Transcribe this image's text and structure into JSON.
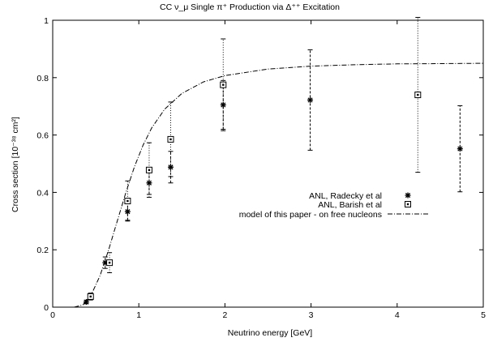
{
  "chart_data": {
    "type": "scatter",
    "title": "CC ν_μ Single π⁺ Production via Δ⁺⁺ Excitation",
    "xlabel": "Neutrino energy [GeV]",
    "ylabel": "Cross section [10⁻³⁸ cm²]",
    "xlim": [
      0,
      5
    ],
    "ylim": [
      0,
      1
    ],
    "xticks": [
      0,
      1,
      2,
      3,
      4,
      5
    ],
    "yticks": [
      0,
      0.2,
      0.4,
      0.6,
      0.8,
      1
    ],
    "xtick_labels": [
      "0",
      "1",
      "2",
      "3",
      "4",
      "5"
    ],
    "ytick_labels": [
      "0",
      "0.2",
      "0.4",
      "0.6",
      "0.8",
      "1"
    ],
    "grid": false,
    "legend_position": "right, middle",
    "series": [
      {
        "name": "ANL, Radecky et al",
        "marker": "star",
        "errorbar_style": "dashed",
        "points": [
          {
            "x": 0.39,
            "y": 0.018,
            "err": 0.006
          },
          {
            "x": 0.61,
            "y": 0.155,
            "err": 0.02
          },
          {
            "x": 0.87,
            "y": 0.333,
            "err": 0.03
          },
          {
            "x": 1.12,
            "y": 0.433,
            "err": 0.04
          },
          {
            "x": 1.37,
            "y": 0.488,
            "err": 0.055
          },
          {
            "x": 1.98,
            "y": 0.705,
            "err": 0.085
          },
          {
            "x": 2.99,
            "y": 0.722,
            "err": 0.175
          },
          {
            "x": 4.73,
            "y": 0.552,
            "err": 0.15
          }
        ]
      },
      {
        "name": "ANL, Barish et al",
        "marker": "square",
        "errorbar_style": "dotted",
        "points": [
          {
            "x": 0.44,
            "y": 0.037,
            "err": 0.012
          },
          {
            "x": 0.66,
            "y": 0.155,
            "err": 0.035
          },
          {
            "x": 0.87,
            "y": 0.37,
            "err": 0.07
          },
          {
            "x": 1.12,
            "y": 0.478,
            "err": 0.095
          },
          {
            "x": 1.37,
            "y": 0.585,
            "err": 0.13
          },
          {
            "x": 1.98,
            "y": 0.775,
            "err": 0.16
          },
          {
            "x": 4.24,
            "y": 0.74,
            "err": 0.27
          }
        ]
      },
      {
        "name": "model of this paper - on free nucleons",
        "style": "dash-dot line",
        "points": [
          {
            "x": 0.25,
            "y": 0
          },
          {
            "x": 0.35,
            "y": 0.008
          },
          {
            "x": 0.45,
            "y": 0.045
          },
          {
            "x": 0.55,
            "y": 0.11
          },
          {
            "x": 0.65,
            "y": 0.2
          },
          {
            "x": 0.75,
            "y": 0.3
          },
          {
            "x": 0.85,
            "y": 0.4
          },
          {
            "x": 0.95,
            "y": 0.49
          },
          {
            "x": 1.05,
            "y": 0.565
          },
          {
            "x": 1.15,
            "y": 0.625
          },
          {
            "x": 1.3,
            "y": 0.69
          },
          {
            "x": 1.5,
            "y": 0.745
          },
          {
            "x": 1.75,
            "y": 0.785
          },
          {
            "x": 2.0,
            "y": 0.807
          },
          {
            "x": 2.5,
            "y": 0.83
          },
          {
            "x": 3.0,
            "y": 0.84
          },
          {
            "x": 3.5,
            "y": 0.845
          },
          {
            "x": 4.0,
            "y": 0.848
          },
          {
            "x": 4.5,
            "y": 0.849
          },
          {
            "x": 5.0,
            "y": 0.85
          }
        ]
      }
    ]
  }
}
